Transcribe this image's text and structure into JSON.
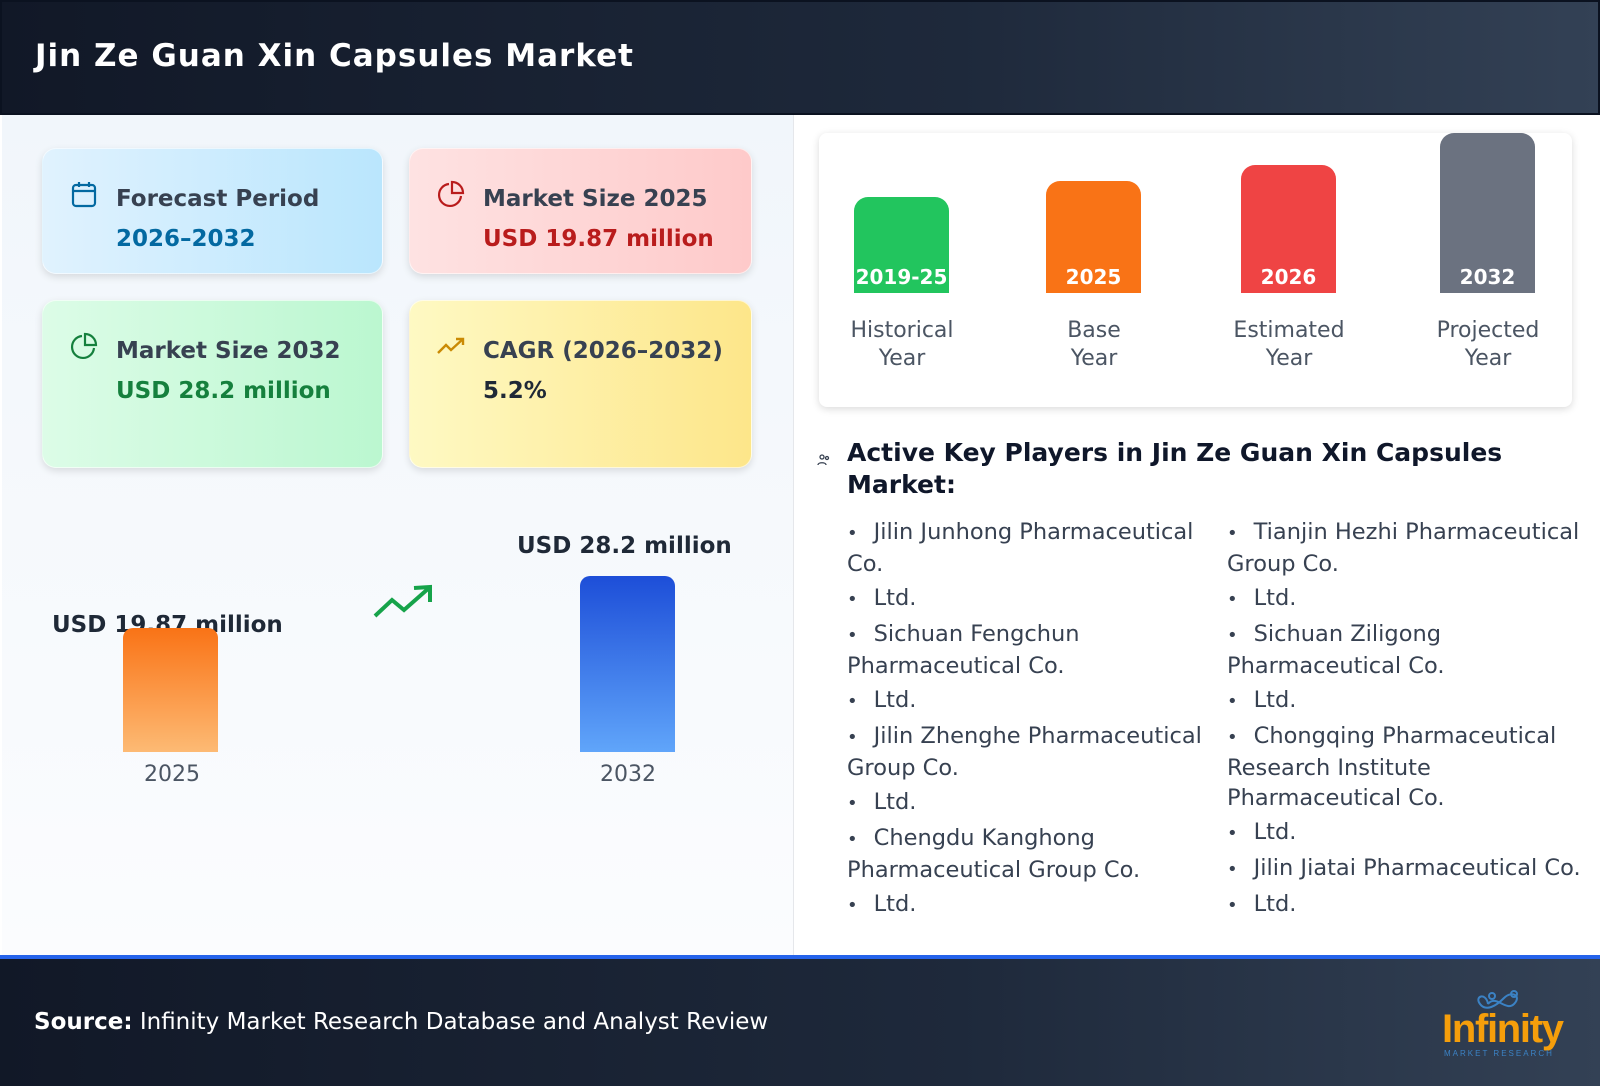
{
  "header": {
    "title": "Jin Ze Guan Xin Capsules Market"
  },
  "cards": [
    {
      "label": "Forecast Period",
      "value": "2026–2032",
      "icon": "calendar-icon",
      "color": "#0369a1"
    },
    {
      "label": "Market Size 2025",
      "value": "USD 19.87 million",
      "icon": "pie-chart-icon",
      "color": "#b91c1c"
    },
    {
      "label": "Market Size 2032",
      "value": "USD 28.2 million",
      "icon": "pie-chart-icon",
      "color": "#15803d"
    },
    {
      "label": "CAGR (2026–2032)",
      "value": "5.2%",
      "icon": "trending-up-icon",
      "color": "#1f2937"
    }
  ],
  "growth": {
    "bars": [
      {
        "label": "USD 19.87 million",
        "year": "2025",
        "value": 19.87,
        "color": "#f97316"
      },
      {
        "label": "USD 28.2 million",
        "year": "2032",
        "value": 28.2,
        "color": "#2563eb"
      }
    ]
  },
  "timeline": [
    {
      "tag": "2019-25",
      "label1": "Historical",
      "label2": "Year",
      "color": "#22c55e"
    },
    {
      "tag": "2025",
      "label1": "Base",
      "label2": "Year",
      "color": "#f97316"
    },
    {
      "tag": "2026",
      "label1": "Estimated",
      "label2": "Year",
      "color": "#ef4444"
    },
    {
      "tag": "2032",
      "label1": "Projected",
      "label2": "Year",
      "color": "#6b7280"
    }
  ],
  "players": {
    "title": "Active Key Players in Jin Ze Guan Xin Capsules Market:",
    "col1": [
      "Jilin Junhong Pharmaceutical Co.",
      "Ltd.",
      "Sichuan Fengchun Pharmaceutical Co.",
      "Ltd.",
      "Jilin Zhenghe Pharmaceutical Group Co.",
      "Ltd.",
      "Chengdu Kanghong Pharmaceutical Group Co.",
      "Ltd."
    ],
    "col2": [
      "Tianjin Hezhi Pharmaceutical Group Co.",
      "Ltd.",
      "Sichuan Ziligong Pharmaceutical Co.",
      "Ltd.",
      "Chongqing Pharmaceutical Research Institute Pharmaceutical Co.",
      "Ltd.",
      "Jilin Jiatai Pharmaceutical Co.",
      "Ltd."
    ]
  },
  "footer": {
    "source_label": "Source:",
    "source_text": "Infinity Market Research Database and Analyst Review",
    "logo_text": "Infinity",
    "logo_sub": "MARKET RESEARCH"
  }
}
